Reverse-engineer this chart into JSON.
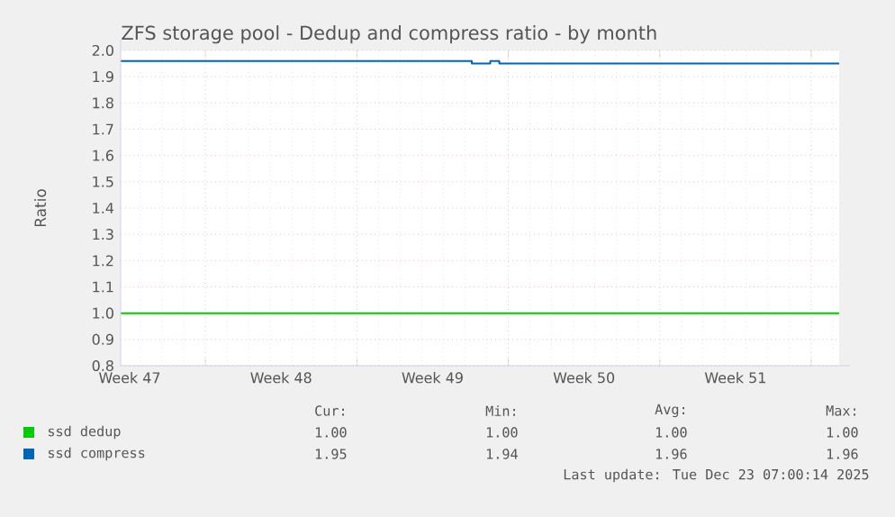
{
  "chart_data": {
    "type": "line",
    "title": "ZFS storage pool - Dedup and compress ratio - by month",
    "ylabel": "Ratio",
    "xlim": [
      "2025-11-20T02:00",
      "2025-12-23T07:00"
    ],
    "ylim": [
      0.8,
      2.0
    ],
    "xticks": [
      {
        "value": "2025-11-20T12:00",
        "label": "Week 47"
      },
      {
        "value": "2025-11-27T12:00",
        "label": "Week 48"
      },
      {
        "value": "2025-12-04T12:00",
        "label": "Week 49"
      },
      {
        "value": "2025-12-11T12:00",
        "label": "Week 50"
      },
      {
        "value": "2025-12-18T12:00",
        "label": "Week 51"
      },
      {
        "value": "2025-11-24",
        "label": null
      },
      {
        "value": "2025-12-01",
        "label": null
      },
      {
        "value": "2025-12-08",
        "label": null
      },
      {
        "value": "2025-12-15",
        "label": null
      },
      {
        "value": "2025-12-22",
        "label": null
      }
    ],
    "yticks": [
      {
        "value": 0.8,
        "label": "0.8"
      },
      {
        "value": 0.9,
        "label": "0.9"
      },
      {
        "value": 1.0,
        "label": "1.0"
      },
      {
        "value": 1.1,
        "label": "1.1"
      },
      {
        "value": 1.2,
        "label": "1.2"
      },
      {
        "value": 1.3,
        "label": "1.3"
      },
      {
        "value": 1.4,
        "label": "1.4"
      },
      {
        "value": 1.5,
        "label": "1.5"
      },
      {
        "value": 1.6,
        "label": "1.6"
      },
      {
        "value": 1.7,
        "label": "1.7"
      },
      {
        "value": 1.8,
        "label": "1.8"
      },
      {
        "value": 1.9,
        "label": "1.9"
      },
      {
        "value": 2.0,
        "label": "2.0"
      }
    ],
    "grid": true,
    "legend": "bottom",
    "series": [
      {
        "name": "ssd dedup",
        "type": "line",
        "color": "#00cc00",
        "x": [
          "2025-11-20T02:00",
          "2025-12-23T07:00"
        ],
        "values": [
          1.0,
          1.0
        ]
      },
      {
        "name": "ssd compress",
        "type": "step",
        "color": "#0066b3",
        "x": [
          "2025-11-20T02:00",
          "2025-12-05T21:30",
          "2025-12-06T07:30",
          "2025-12-07T04:00",
          "2025-12-07T14:00",
          "2025-12-23T07:00"
        ],
        "values": [
          1.96,
          1.96,
          1.95,
          1.96,
          1.95,
          1.95
        ]
      }
    ],
    "annotations": [
      "Cur:",
      "Min:",
      "Avg:",
      "Max:",
      "1.00",
      "1.00",
      "1.00",
      "1.00",
      "1.95",
      "1.94",
      "1.96",
      "1.96",
      "Last update: Tue Dec 23 07:00:14 2025"
    ]
  }
}
